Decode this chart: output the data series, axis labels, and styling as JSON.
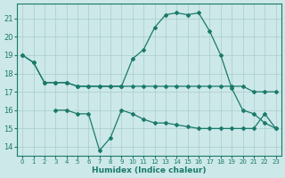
{
  "xlabel": "Humidex (Indice chaleur)",
  "x_ticks": [
    0,
    1,
    2,
    3,
    4,
    5,
    6,
    7,
    8,
    9,
    10,
    11,
    12,
    13,
    14,
    15,
    16,
    17,
    18,
    19,
    20,
    21,
    22,
    23
  ],
  "xlim": [
    -0.5,
    23.5
  ],
  "ylim": [
    13.5,
    21.8
  ],
  "yticks": [
    14,
    15,
    16,
    17,
    18,
    19,
    20,
    21
  ],
  "bg_color": "#cce8e8",
  "grid_color": "#aacccc",
  "line_color": "#1a7a6a",
  "line1_x": [
    0,
    1,
    2,
    3,
    4,
    5,
    6,
    7,
    8,
    9,
    10,
    11,
    12,
    13,
    14,
    15,
    16,
    17,
    18,
    19,
    20,
    21,
    22,
    23
  ],
  "line1_y": [
    19.0,
    18.6,
    17.5,
    17.5,
    17.5,
    17.3,
    17.3,
    17.3,
    17.3,
    17.3,
    18.8,
    19.3,
    20.5,
    21.2,
    21.3,
    21.2,
    21.3,
    20.3,
    19.0,
    17.2,
    16.0,
    15.8,
    15.3,
    15.0
  ],
  "line2_x": [
    0,
    1,
    2,
    3,
    4,
    5,
    6,
    7,
    8,
    9,
    10,
    11,
    12,
    13,
    14,
    15,
    16,
    17,
    18,
    19,
    20,
    21,
    22,
    23
  ],
  "line2_y": [
    19.0,
    18.6,
    17.5,
    17.5,
    17.5,
    17.3,
    17.3,
    17.3,
    17.3,
    17.3,
    17.3,
    17.3,
    17.3,
    17.3,
    17.3,
    17.3,
    17.3,
    17.3,
    17.3,
    17.3,
    17.3,
    17.0,
    17.0,
    17.0
  ],
  "line3_x": [
    3,
    4,
    5,
    6,
    7,
    8,
    9,
    10,
    11,
    12,
    13,
    14,
    15,
    16,
    17,
    18,
    19,
    20,
    21,
    22,
    23
  ],
  "line3_y": [
    16.0,
    16.0,
    15.8,
    15.8,
    13.8,
    14.5,
    16.0,
    15.8,
    15.5,
    15.3,
    15.3,
    15.2,
    15.1,
    15.0,
    15.0,
    15.0,
    15.0,
    15.0,
    15.0,
    15.8,
    15.0
  ]
}
